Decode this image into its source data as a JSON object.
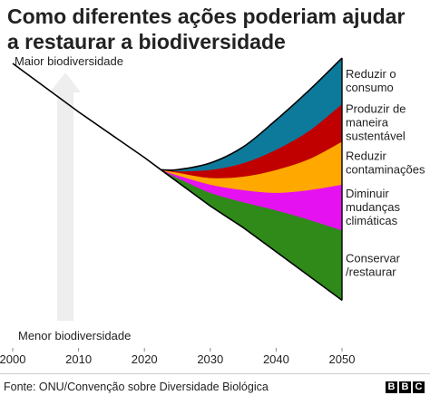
{
  "title_lines": [
    "Como diferentes ações poderiam ajudar",
    "a restaurar a biodiversidade"
  ],
  "source": "Fonte: ONU/Convenção sobre Diversidade Biológica",
  "logo": [
    "B",
    "B",
    "C"
  ],
  "colors": {
    "baseline": "#000000",
    "arrow": "#eeeeee",
    "segments": [
      "#2f8a1a",
      "#e611f0",
      "#ffa800",
      "#c00000",
      "#0e7a9b"
    ]
  },
  "chart_data": {
    "type": "area",
    "x": [
      2000,
      2010,
      2020,
      2022.5,
      2025,
      2030,
      2035,
      2040,
      2045,
      2050
    ],
    "xlim": [
      2000,
      2050
    ],
    "xticks": [
      "2000",
      "2010",
      "2020",
      "2030",
      "2040",
      "2050"
    ],
    "ylim": [
      0,
      100
    ],
    "ylabel_top": "Maior biodiversidade",
    "ylabel_bottom": "Menor biodiversidade",
    "baseline": [
      100,
      82,
      65,
      60.5,
      56,
      47,
      39,
      30,
      21,
      12
    ],
    "series": [
      {
        "name": "Conservar /restaurar",
        "color": "#2f8a1a",
        "values": [
          100,
          82,
          65,
          60.5,
          57.5,
          52,
          48.5,
          45.5,
          42,
          38
        ]
      },
      {
        "name": "Diminuir mudanças climáticas",
        "color": "#e611f0",
        "values": [
          100,
          82,
          65,
          60.5,
          58.5,
          55,
          53,
          52,
          53,
          55
        ]
      },
      {
        "name": "Reduzir contaminações",
        "color": "#ffa800",
        "values": [
          100,
          82,
          65,
          60.5,
          59.5,
          57.5,
          58,
          60.5,
          64.5,
          71
        ]
      },
      {
        "name": "Produzir de maneira sustentável",
        "color": "#c00000",
        "values": [
          100,
          82,
          65,
          60.5,
          60,
          60.5,
          63,
          68,
          75,
          85
        ]
      },
      {
        "name": "Reduzir o consumo",
        "color": "#0e7a9b",
        "values": [
          100,
          82,
          65,
          60.5,
          60.5,
          63,
          69,
          79,
          90,
          102
        ]
      }
    ],
    "labels": [
      {
        "series": 0,
        "lines": [
          "Conservar",
          "/restaurar"
        ]
      },
      {
        "series": 1,
        "lines": [
          "Diminuir",
          "mudanças",
          "climáticas"
        ]
      },
      {
        "series": 2,
        "lines": [
          "Reduzir",
          "contaminações"
        ]
      },
      {
        "series": 3,
        "lines": [
          "Produzir de",
          "maneira",
          "sustentável"
        ]
      },
      {
        "series": 4,
        "lines": [
          "Reduzir o",
          "consumo"
        ]
      }
    ]
  }
}
